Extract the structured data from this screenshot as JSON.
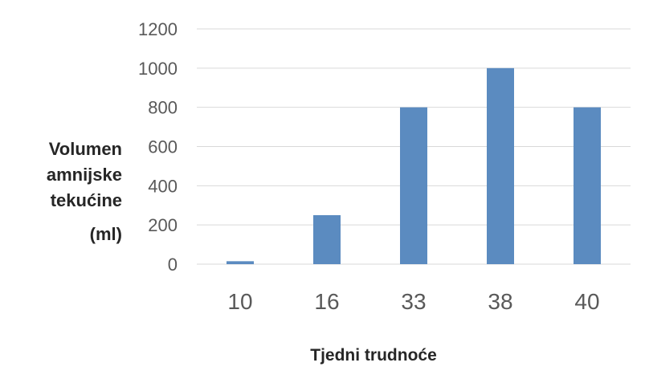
{
  "chart_data": {
    "type": "bar",
    "categories": [
      "10",
      "16",
      "33",
      "38",
      "40"
    ],
    "values": [
      15,
      250,
      800,
      1000,
      800
    ],
    "title": "",
    "xlabel": "Tjedni trudnoće",
    "ylabel_lines": [
      "Volumen",
      "amnijske",
      "tekućine",
      "(ml)"
    ],
    "ylim": [
      0,
      1200
    ],
    "yticks": [
      0,
      200,
      400,
      600,
      800,
      1000,
      1200
    ],
    "grid": true,
    "legend": "none",
    "colors": {
      "bar": "#5B8BC0",
      "grid": "#D9D9D9",
      "tick_text": "#595959",
      "label_text": "#262626"
    }
  }
}
